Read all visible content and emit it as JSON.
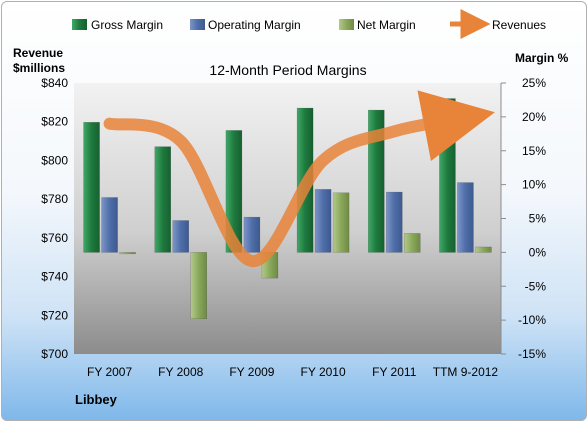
{
  "chart_data": {
    "type": "bar",
    "title": "12-Month Period Margins",
    "company": "Libbey",
    "y_left_label_line1": "Revenue",
    "y_left_label_line2": "$millions",
    "y_right_label": "Margin %",
    "categories": [
      "FY 2007",
      "FY 2008",
      "FY 2009",
      "FY 2010",
      "FY 2011",
      "TTM 9-2012"
    ],
    "ylim_left": [
      700,
      840
    ],
    "left_ticks": [
      "$700",
      "$720",
      "$740",
      "$760",
      "$780",
      "$800",
      "$820",
      "$840"
    ],
    "ylim_right": [
      -15,
      25
    ],
    "right_ticks": [
      "-15%",
      "-10%",
      "-5%",
      "0%",
      "5%",
      "10%",
      "15%",
      "20%",
      "25%"
    ],
    "legend_position": "top",
    "series": [
      {
        "name": "Gross Margin",
        "axis": "right",
        "kind": "bar",
        "color": "#1f7a3f",
        "values": [
          19.2,
          15.6,
          18.0,
          21.3,
          21.0,
          22.7
        ]
      },
      {
        "name": "Operating Margin",
        "axis": "right",
        "kind": "bar",
        "color": "#4f6ea8",
        "values": [
          8.1,
          4.7,
          5.2,
          9.3,
          8.9,
          10.3
        ]
      },
      {
        "name": "Net Margin",
        "axis": "right",
        "kind": "bar",
        "color": "#8aa85a",
        "values": [
          -0.2,
          -9.8,
          -3.8,
          8.8,
          2.8,
          0.8
        ]
      },
      {
        "name": "Revenues",
        "axis": "left",
        "kind": "line-arrow",
        "color": "#e8833a",
        "values": [
          819,
          810,
          748,
          800,
          815,
          822
        ]
      }
    ]
  }
}
